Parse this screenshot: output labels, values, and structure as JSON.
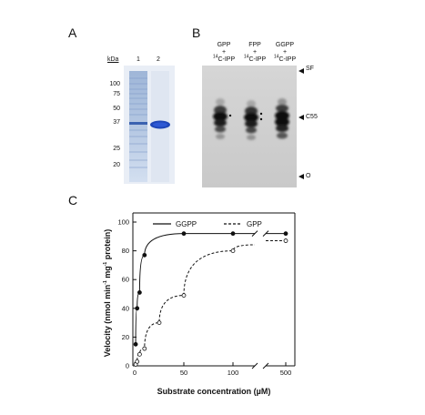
{
  "panels": {
    "a": "A",
    "b": "B",
    "c": "C"
  },
  "panel_a": {
    "unit_label": "kDa",
    "lane_labels": [
      "1",
      "2"
    ],
    "markers": [
      "100",
      "75",
      "50",
      "37",
      "25",
      "20"
    ]
  },
  "panel_b": {
    "lanes": [
      {
        "top": "GPP",
        "plus": "+",
        "bottom_sup": "14",
        "bottom": "C-IPP"
      },
      {
        "top": "FPP",
        "plus": "+",
        "bottom_sup": "14",
        "bottom": "C-IPP"
      },
      {
        "top": "GGPP",
        "plus": "+",
        "bottom_sup": "14",
        "bottom": "C-IPP"
      }
    ],
    "marker_sf": "SF",
    "marker_c55": "C55",
    "marker_o": "O"
  },
  "chart_data": {
    "type": "line",
    "ylabel_main": "Velocity (nmol min",
    "ylabel_sup1": "-1",
    "ylabel_mid": " mg",
    "ylabel_sup2": "-1",
    "ylabel_end": " protein)",
    "xlabel": "Substrate concentration (µM)",
    "xticks": [
      "0",
      "50",
      "100",
      "500"
    ],
    "yticks": [
      "0",
      "20",
      "40",
      "60",
      "80",
      "100"
    ],
    "ylim": [
      0,
      100
    ],
    "x_axis_break": "between 100 and 500",
    "legend_position": "top",
    "series": [
      {
        "name": "GGPP",
        "style": "solid",
        "marker": "filled-circle",
        "x": [
          1,
          2.5,
          5,
          10,
          50,
          100,
          500
        ],
        "y": [
          15,
          40,
          51,
          77,
          92,
          92,
          92
        ]
      },
      {
        "name": "GPP",
        "style": "dashed",
        "marker": "open-circle",
        "x": [
          1,
          2.5,
          5,
          10,
          25,
          50,
          100,
          500
        ],
        "y": [
          1,
          3,
          8,
          12,
          30,
          49,
          80,
          87
        ]
      }
    ],
    "colors": {
      "line": "#111111"
    }
  }
}
